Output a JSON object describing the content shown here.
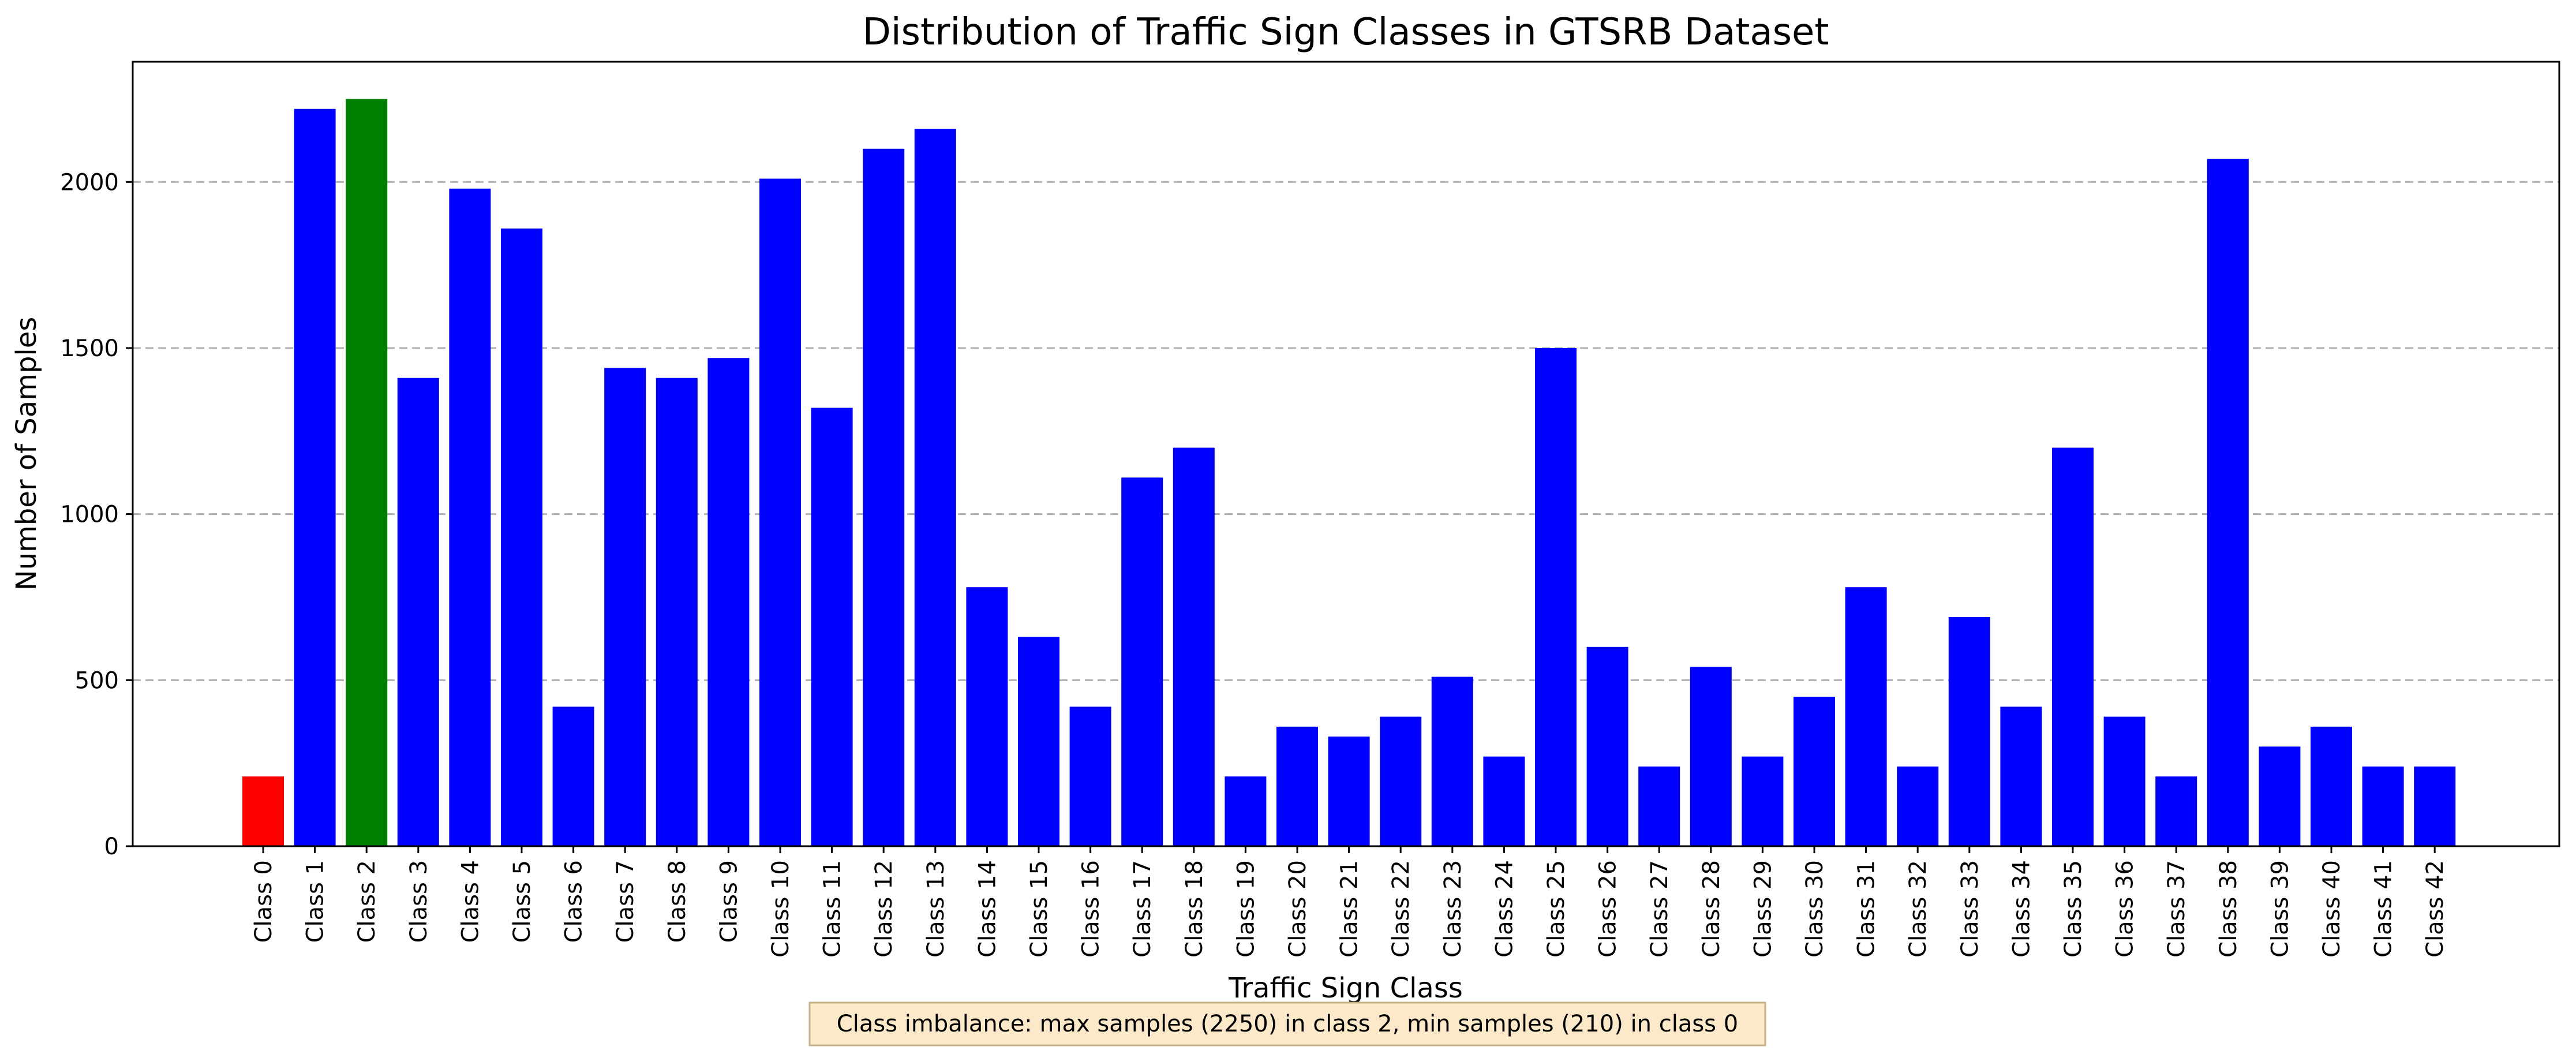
{
  "chart_data": {
    "type": "bar",
    "title": "Distribution of Traffic Sign Classes in GTSRB Dataset",
    "xlabel": "Traffic Sign Class",
    "ylabel": "Number of Samples",
    "categories": [
      "Class 0",
      "Class 1",
      "Class 2",
      "Class 3",
      "Class 4",
      "Class 5",
      "Class 6",
      "Class 7",
      "Class 8",
      "Class 9",
      "Class 10",
      "Class 11",
      "Class 12",
      "Class 13",
      "Class 14",
      "Class 15",
      "Class 16",
      "Class 17",
      "Class 18",
      "Class 19",
      "Class 20",
      "Class 21",
      "Class 22",
      "Class 23",
      "Class 24",
      "Class 25",
      "Class 26",
      "Class 27",
      "Class 28",
      "Class 29",
      "Class 30",
      "Class 31",
      "Class 32",
      "Class 33",
      "Class 34",
      "Class 35",
      "Class 36",
      "Class 37",
      "Class 38",
      "Class 39",
      "Class 40",
      "Class 41",
      "Class 42"
    ],
    "values": [
      210,
      2220,
      2250,
      1410,
      1980,
      1860,
      420,
      1440,
      1410,
      1470,
      2010,
      1320,
      2100,
      2160,
      780,
      630,
      420,
      1110,
      1200,
      210,
      360,
      330,
      390,
      510,
      270,
      1500,
      600,
      240,
      540,
      270,
      450,
      780,
      240,
      690,
      420,
      1200,
      390,
      210,
      2070,
      300,
      360,
      240,
      240
    ],
    "bar_colors": [
      "#ff0000",
      "#0000ff",
      "#008000",
      "#0000ff",
      "#0000ff",
      "#0000ff",
      "#0000ff",
      "#0000ff",
      "#0000ff",
      "#0000ff",
      "#0000ff",
      "#0000ff",
      "#0000ff",
      "#0000ff",
      "#0000ff",
      "#0000ff",
      "#0000ff",
      "#0000ff",
      "#0000ff",
      "#0000ff",
      "#0000ff",
      "#0000ff",
      "#0000ff",
      "#0000ff",
      "#0000ff",
      "#0000ff",
      "#0000ff",
      "#0000ff",
      "#0000ff",
      "#0000ff",
      "#0000ff",
      "#0000ff",
      "#0000ff",
      "#0000ff",
      "#0000ff",
      "#0000ff",
      "#0000ff",
      "#0000ff",
      "#0000ff",
      "#0000ff",
      "#0000ff",
      "#0000ff",
      "#0000ff"
    ],
    "ylim": [
      0,
      2362
    ],
    "yticks": [
      0,
      500,
      1000,
      1500,
      2000
    ],
    "grid": "horizontal dashed",
    "annotation": "Class imbalance: max samples (2250) in class 2, min samples (210) in class 0"
  }
}
